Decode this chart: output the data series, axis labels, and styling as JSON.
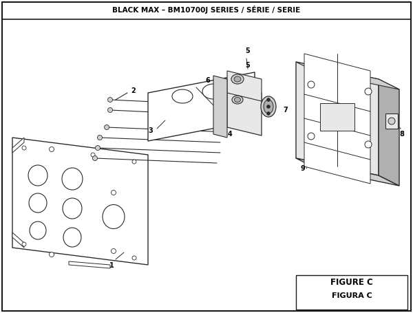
{
  "title": "BLACK MAX – BM10700J SERIES / SÉRIE / SERIE",
  "figure_label": "FIGURE C",
  "figura_label": "FIGURA C",
  "bg_color": "#ffffff",
  "border_color": "#1a1a1a",
  "line_color": "#2a2a2a",
  "thin_line": "#3a3a3a"
}
